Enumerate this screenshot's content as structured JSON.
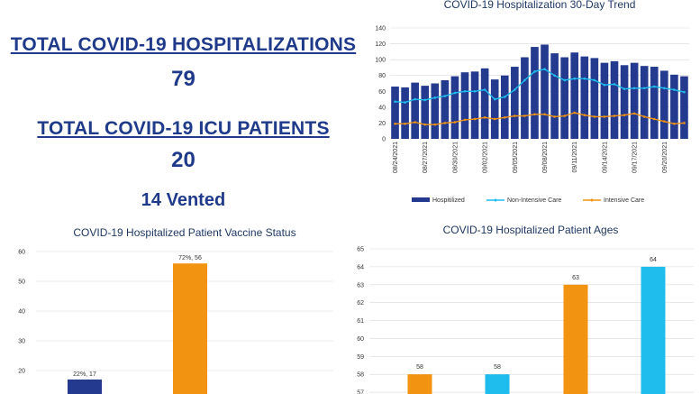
{
  "summary": {
    "hosp_title": "TOTAL COVID-19 HOSPITALIZATIONS",
    "hosp_value": "79",
    "icu_title": "TOTAL COVID-19 ICU PATIENTS",
    "icu_value": "20",
    "vented": "14 Vented"
  },
  "colors": {
    "navy": "#233a8f",
    "cyan": "#1fbcee",
    "orange": "#f39312",
    "title": "#1f3a8a"
  },
  "chart_data": [
    {
      "type": "bar",
      "title": "COVID-19 Hospitalization 30-Day Trend",
      "x": [
        "08/24/2021",
        "08/25/2021",
        "08/26/2021",
        "08/27/2021",
        "08/28/2021",
        "08/29/2021",
        "08/30/2021",
        "08/31/2021",
        "09/01/2021",
        "09/02/2021",
        "09/03/2021",
        "09/04/2021",
        "09/05/2021",
        "09/06/2021",
        "09/07/2021",
        "09/08/2021",
        "09/09/2021",
        "09/10/2021",
        "09/11/2021",
        "09/12/2021",
        "09/13/2021",
        "09/14/2021",
        "09/15/2021",
        "09/16/2021",
        "09/17/2021",
        "09/18/2021",
        "09/19/2021",
        "09/20/2021",
        "09/21/2021",
        "09/22/2021"
      ],
      "tick_labels": [
        "08/24/2021",
        "08/27/2021",
        "08/30/2021",
        "09/02/2021",
        "09/05/2021",
        "09/08/2021",
        "09/11/2021",
        "09/14/2021",
        "09/17/2021",
        "09/20/2021"
      ],
      "series": [
        {
          "name": "Hospitilized",
          "kind": "bar",
          "color": "#233a8f",
          "values": [
            66,
            65,
            71,
            67,
            70,
            74,
            79,
            84,
            85,
            89,
            75,
            80,
            91,
            103,
            116,
            119,
            108,
            103,
            109,
            104,
            102,
            96,
            98,
            93,
            96,
            92,
            91,
            86,
            81,
            79
          ]
        },
        {
          "name": "Non-Intensive Care",
          "kind": "line",
          "color": "#1fbcee",
          "values": [
            47,
            46,
            50,
            49,
            52,
            54,
            58,
            60,
            60,
            62,
            50,
            53,
            62,
            74,
            85,
            88,
            80,
            74,
            76,
            76,
            74,
            68,
            69,
            63,
            64,
            64,
            66,
            64,
            62,
            59
          ]
        },
        {
          "name": "Intensive Care",
          "kind": "line",
          "color": "#f39312",
          "values": [
            19,
            19,
            21,
            18,
            18,
            20,
            21,
            24,
            25,
            27,
            25,
            27,
            29,
            29,
            31,
            31,
            28,
            29,
            33,
            30,
            28,
            28,
            29,
            30,
            32,
            28,
            25,
            22,
            19,
            20
          ]
        }
      ],
      "ylim": [
        0,
        140
      ],
      "yticks": [
        0,
        20,
        40,
        60,
        80,
        100,
        120,
        140
      ],
      "legend": "bottom",
      "grid": true
    },
    {
      "type": "bar",
      "title": "COVID-19 Hospitalized Patient Vaccine Status",
      "categories": [
        "",
        ""
      ],
      "values": [
        17,
        56
      ],
      "data_labels": [
        "22%, 17",
        "72%, 56"
      ],
      "colors": [
        "#233a8f",
        "#f39312"
      ],
      "ylim": [
        10,
        60
      ],
      "yticks": [
        20,
        30,
        40,
        50,
        60
      ]
    },
    {
      "type": "bar",
      "title": "COVID-19 Hospitalized Patient Ages",
      "categories": [
        "",
        "",
        "",
        ""
      ],
      "values": [
        58,
        58,
        63,
        64
      ],
      "data_labels": [
        "58",
        "58",
        "63",
        "64"
      ],
      "colors": [
        "#f39312",
        "#1fbcee",
        "#f39312",
        "#1fbcee"
      ],
      "ylim": [
        56.5,
        65
      ],
      "yticks": [
        57,
        58,
        59,
        60,
        61,
        62,
        63,
        64,
        65
      ]
    }
  ]
}
